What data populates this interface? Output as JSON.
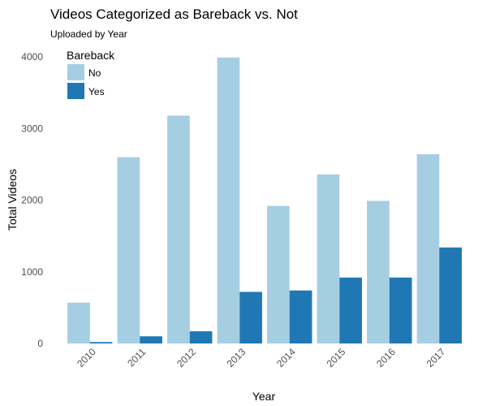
{
  "colors": {
    "no": "#a6cee3",
    "yes": "#1f78b4",
    "tick_text": "#4d4d4d",
    "text": "#000000"
  },
  "chart_data": {
    "type": "bar",
    "title": "Videos Categorized as Bareback vs. Not",
    "subtitle": "Uploaded by Year",
    "xlabel": "Year",
    "ylabel": "Total Videos",
    "ylim": [
      0,
      4200
    ],
    "yticks": [
      0,
      1000,
      2000,
      3000,
      4000
    ],
    "grid": false,
    "legend": {
      "title": "Bareback",
      "placement": "top-left"
    },
    "categories": [
      "2010",
      "2011",
      "2012",
      "2013",
      "2014",
      "2015",
      "2016",
      "2017"
    ],
    "series": [
      {
        "name": "No",
        "values": [
          570,
          2600,
          3180,
          3990,
          1920,
          2360,
          1990,
          2640
        ]
      },
      {
        "name": "Yes",
        "values": [
          20,
          100,
          170,
          720,
          740,
          920,
          920,
          1340
        ]
      }
    ]
  }
}
